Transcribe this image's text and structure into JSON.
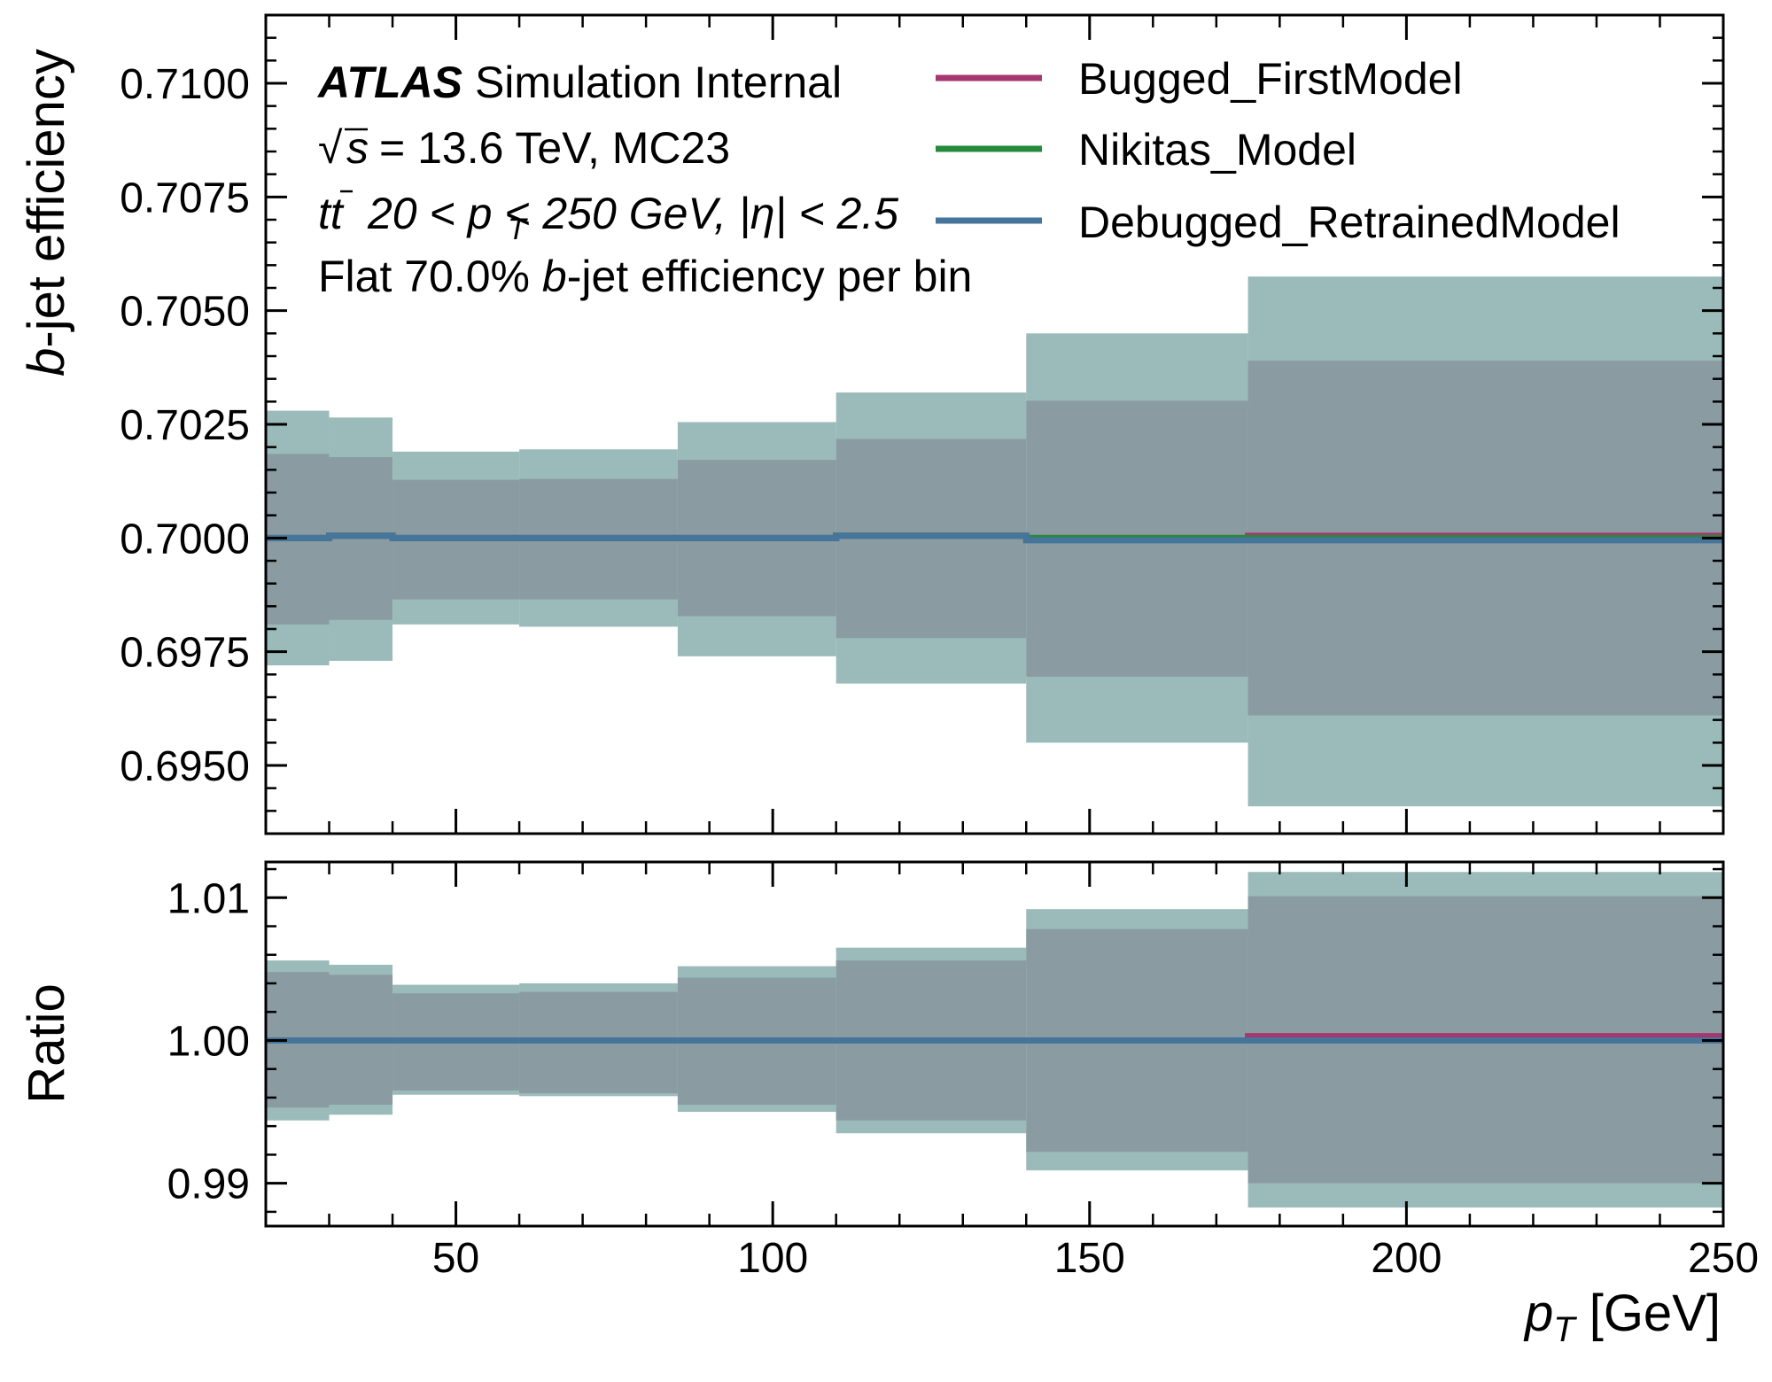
{
  "colors": {
    "outer_band": "#9abbb9",
    "inner_band": "#8a9ca2",
    "bugged": "#a4386f",
    "nikitas": "#268a3a",
    "debugged": "#46759c",
    "axis": "#000000"
  },
  "annotation": {
    "experiment": "ATLAS",
    "status": "Simulation Internal",
    "energy_line": "= 13.6 TeV, MC23",
    "selection_line": "20 < p  < 250 GeV, |η| < 2.5",
    "wp_line_pre": "Flat 70.0% ",
    "wp_line_b": "b",
    "wp_line_post": "-jet efficiency per bin"
  },
  "legend": [
    {
      "label": "Bugged_FirstModel",
      "color_key": "bugged"
    },
    {
      "label": "Nikitas_Model",
      "color_key": "nikitas"
    },
    {
      "label": "Debugged_RetrainedModel",
      "color_key": "debugged"
    }
  ],
  "chart_data": [
    {
      "type": "line",
      "panel": "main",
      "ylabel": "b-jet efficiency",
      "xlim": [
        20,
        250
      ],
      "ylim": [
        0.6935,
        0.7115
      ],
      "yticks": [
        0.695,
        0.6975,
        0.7,
        0.7025,
        0.705,
        0.7075,
        0.71
      ],
      "ytick_labels": [
        "0.6950",
        "0.6975",
        "0.7000",
        "0.7025",
        "0.7050",
        "0.7075",
        "0.7100"
      ],
      "bin_edges": [
        20,
        30,
        40,
        60,
        85,
        110,
        140,
        175,
        250
      ],
      "outer_band": [
        [
          0.6972,
          0.7028
        ],
        [
          0.6973,
          0.70265
        ],
        [
          0.6981,
          0.7019
        ],
        [
          0.69805,
          0.70195
        ],
        [
          0.6974,
          0.70255
        ],
        [
          0.6968,
          0.7032
        ],
        [
          0.6955,
          0.7045
        ],
        [
          0.6941,
          0.70575
        ]
      ],
      "inner_band": [
        [
          0.6981,
          0.70185
        ],
        [
          0.6982,
          0.70178
        ],
        [
          0.69865,
          0.70128
        ],
        [
          0.69865,
          0.7013
        ],
        [
          0.69828,
          0.70172
        ],
        [
          0.6978,
          0.70218
        ],
        [
          0.69695,
          0.70302
        ],
        [
          0.6961,
          0.7039
        ]
      ],
      "series": [
        {
          "name": "Bugged_FirstModel",
          "values": [
            0.7,
            0.70005,
            0.7,
            0.7,
            0.7,
            0.70005,
            0.7,
            0.70005
          ]
        },
        {
          "name": "Nikitas_Model",
          "values": [
            0.7,
            0.70005,
            0.7,
            0.7,
            0.7,
            0.70005,
            0.7,
            0.7
          ]
        },
        {
          "name": "Debugged_RetrainedModel",
          "values": [
            0.7,
            0.70005,
            0.7,
            0.7,
            0.7,
            0.70005,
            0.69995,
            0.69995
          ]
        }
      ]
    },
    {
      "type": "line",
      "panel": "ratio",
      "xlabel": "p_T [GeV]",
      "ylabel": "Ratio",
      "xlim": [
        20,
        250
      ],
      "ylim": [
        0.987,
        1.0125
      ],
      "xticks": [
        50,
        100,
        150,
        200,
        250
      ],
      "xtick_labels": [
        "50",
        "100",
        "150",
        "200",
        "250"
      ],
      "yticks": [
        0.99,
        1.0,
        1.01
      ],
      "ytick_labels": [
        "0.99",
        "1.00",
        "1.01"
      ],
      "bin_edges": [
        20,
        30,
        40,
        60,
        85,
        110,
        140,
        175,
        250
      ],
      "outer_band": [
        [
          0.9944,
          1.0056
        ],
        [
          0.9948,
          1.0053
        ],
        [
          0.9962,
          1.0039
        ],
        [
          0.9961,
          1.004
        ],
        [
          0.995,
          1.0052
        ],
        [
          0.9935,
          1.0065
        ],
        [
          0.9909,
          1.0092
        ],
        [
          0.9883,
          1.0118
        ]
      ],
      "inner_band": [
        [
          0.9953,
          1.0048
        ],
        [
          0.9955,
          1.0046
        ],
        [
          0.9965,
          1.0033
        ],
        [
          0.9963,
          1.0034
        ],
        [
          0.9955,
          1.0044
        ],
        [
          0.9944,
          1.0056
        ],
        [
          0.9922,
          1.0078
        ],
        [
          0.99,
          1.0101
        ]
      ],
      "series": [
        {
          "name": "Bugged_FirstModel",
          "values": [
            1.0,
            1.0,
            1.0,
            1.0,
            1.0,
            1.0,
            1.0,
            1.0003
          ]
        },
        {
          "name": "Nikitas_Model",
          "values": [
            1.0,
            1.0,
            1.0,
            1.0,
            1.0,
            1.0,
            1.0,
            1.0
          ]
        },
        {
          "name": "Debugged_RetrainedModel",
          "values": [
            1.0,
            1.0,
            1.0,
            1.0,
            1.0,
            1.0,
            1.0,
            1.0
          ]
        }
      ]
    }
  ]
}
